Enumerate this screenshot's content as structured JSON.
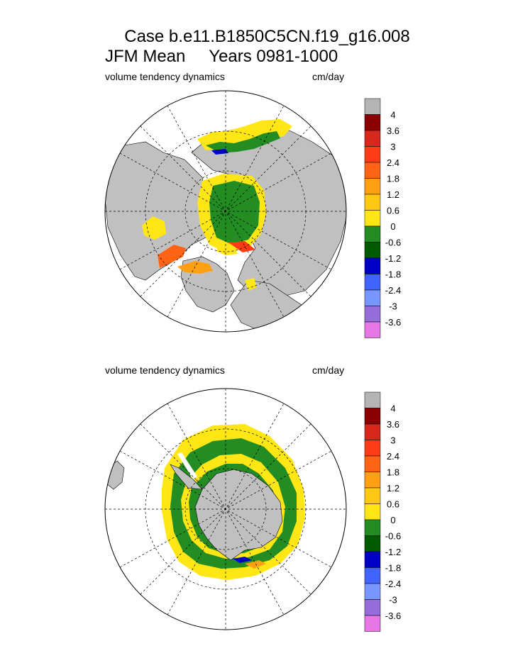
{
  "title_line1": "Case b.e11.B1850C5CN.f19_g16.008",
  "title_line2": "JFM Mean     Years 0981-1000",
  "chart_data": [
    {
      "type": "heatmap",
      "panel": "north",
      "projection": "polar stereographic (north pole)",
      "left_label": "volume tendency dynamics",
      "right_label": "cm/day",
      "colorbar": {
        "levels": [
          "4",
          "3.6",
          "3",
          "2.4",
          "1.8",
          "1.2",
          "0.6",
          "0",
          "-0.6",
          "-1.2",
          "-1.8",
          "-2.4",
          "-3",
          "-3.6"
        ],
        "colors": [
          "#b4b4b4",
          "#8b0000",
          "#d7281e",
          "#ff3c14",
          "#ff6414",
          "#ffa014",
          "#ffc814",
          "#ffe614",
          "#238c23",
          "#005a00",
          "#0000c8",
          "#4164ff",
          "#7896ff",
          "#966edc",
          "#e678e6"
        ]
      },
      "grid": true,
      "land_color": "#c0c0c0"
    },
    {
      "type": "heatmap",
      "panel": "south",
      "projection": "polar stereographic (south pole)",
      "left_label": "volume tendency dynamics",
      "right_label": "cm/day",
      "colorbar": {
        "levels": [
          "4",
          "3.6",
          "3",
          "2.4",
          "1.8",
          "1.2",
          "0.6",
          "0",
          "-0.6",
          "-1.2",
          "-1.8",
          "-2.4",
          "-3",
          "-3.6"
        ],
        "colors": [
          "#b4b4b4",
          "#8b0000",
          "#d7281e",
          "#ff3c14",
          "#ff6414",
          "#ffa014",
          "#ffc814",
          "#ffe614",
          "#238c23",
          "#005a00",
          "#0000c8",
          "#4164ff",
          "#7896ff",
          "#966edc",
          "#e678e6"
        ]
      },
      "grid": true,
      "land_color": "#c0c0c0"
    }
  ]
}
